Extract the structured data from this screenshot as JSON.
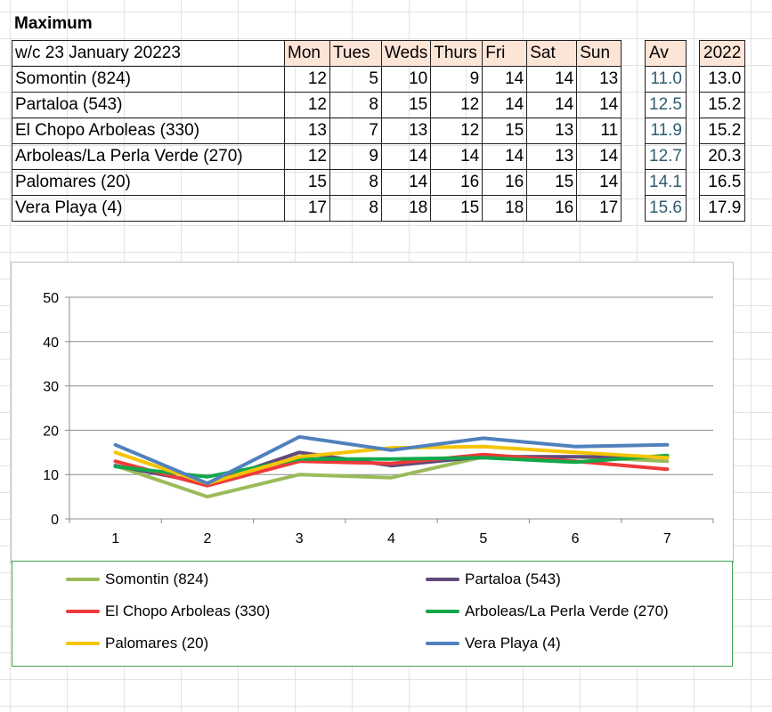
{
  "title": "Maximum",
  "table": {
    "week_label": "w/c  23 January 20223",
    "days": [
      "Mon",
      "Tues",
      "Weds",
      "Thurs",
      "Fri",
      "Sat",
      "Sun"
    ],
    "av_header": "Av",
    "year_header": "2022",
    "rows": [
      {
        "name": "Somontin (824)",
        "values": [
          "12",
          "5",
          "10",
          "9",
          "14",
          "14",
          "13"
        ],
        "av": "11.0",
        "prev": "13.0"
      },
      {
        "name": "Partaloa (543)",
        "values": [
          "12",
          "8",
          "15",
          "12",
          "14",
          "14",
          "14"
        ],
        "av": "12.5",
        "prev": "15.2"
      },
      {
        "name": "El Chopo  Arboleas (330)",
        "values": [
          "13",
          "7",
          "13",
          "12",
          "15",
          "13",
          "11"
        ],
        "av": "11.9",
        "prev": "15.2"
      },
      {
        "name": "Arboleas/La Perla Verde (270)",
        "values": [
          "12",
          "9",
          "14",
          "14",
          "14",
          "13",
          "14"
        ],
        "av": "12.7",
        "prev": "20.3"
      },
      {
        "name": "Palomares (20)",
        "values": [
          "15",
          "8",
          "14",
          "16",
          "16",
          "15",
          "14"
        ],
        "av": "14.1",
        "prev": "16.5"
      },
      {
        "name": "Vera Playa (4)",
        "values": [
          "17",
          "8",
          "18",
          "15",
          "18",
          "16",
          "17"
        ],
        "av": "15.6",
        "prev": "17.9"
      }
    ]
  },
  "chart_data": {
    "type": "line",
    "x": [
      1,
      2,
      3,
      4,
      5,
      6,
      7
    ],
    "ylim": [
      0,
      50
    ],
    "yticks": [
      0,
      10,
      20,
      30,
      40,
      50
    ],
    "grid": true,
    "legend_position": "bottom",
    "series": [
      {
        "name": "Somontin (824)",
        "color": "#9bbb59",
        "values": [
          12,
          5,
          10,
          9.3,
          14,
          14,
          13
        ]
      },
      {
        "name": "Partaloa (543)",
        "color": "#604a7b",
        "values": [
          12,
          8,
          15,
          12,
          14,
          14,
          14
        ]
      },
      {
        "name": "El Chopo  Arboleas (330)",
        "color": "#ee3a3a",
        "values": [
          13,
          7.5,
          13,
          12.5,
          14.5,
          13,
          11.2
        ]
      },
      {
        "name": "Arboleas/La Perla Verde (270)",
        "color": "#12a84a",
        "values": [
          11.8,
          9.5,
          13.5,
          13.5,
          13.8,
          12.8,
          14.3
        ]
      },
      {
        "name": "Palomares (20)",
        "color": "#f5c400",
        "values": [
          15,
          8,
          14,
          16,
          16.3,
          15,
          13.8
        ]
      },
      {
        "name": "Vera Playa (4)",
        "color": "#4f81bd",
        "values": [
          16.7,
          8,
          18.5,
          15.5,
          18.2,
          16.3,
          16.7
        ]
      }
    ]
  }
}
